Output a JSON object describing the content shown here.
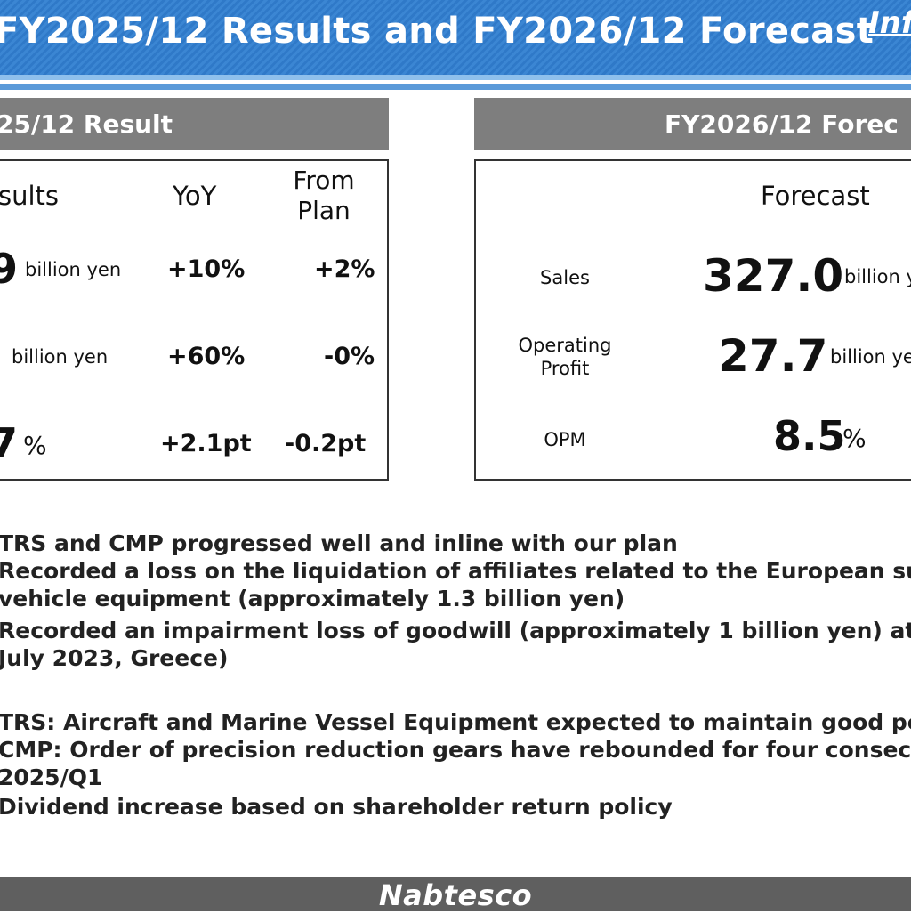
{
  "header": {
    "title": "FY2025/12 Results and FY2026/12 Forecast",
    "mark": "Inf"
  },
  "left": {
    "section_title": "25/12 Result",
    "headers": {
      "results": "sults",
      "yoy": "YoY",
      "from_plan_line1": "From",
      "from_plan_line2": "Plan"
    },
    "rows": [
      {
        "value": "9",
        "unit": "billion yen",
        "yoy": "+10%",
        "from_plan": "+2%"
      },
      {
        "value": "",
        "unit": "billion yen",
        "yoy": "+60%",
        "from_plan": "-0%"
      },
      {
        "value": "7",
        "unit": "%",
        "yoy": "+2.1pt",
        "from_plan": "-0.2pt"
      }
    ]
  },
  "right": {
    "section_title": "FY2026/12 Forec",
    "header": "Forecast",
    "rows": [
      {
        "label_line1": "Sales",
        "label_line2": "",
        "value": "327.0",
        "unit": "billion y"
      },
      {
        "label_line1": "Operating",
        "label_line2": "Profit",
        "value": "27.7",
        "unit": "billion ye"
      },
      {
        "label_line1": "OPM",
        "label_line2": "",
        "value": "8.5",
        "unit": "%"
      }
    ]
  },
  "bullets": [
    "TRS and CMP progressed well and inline with our plan",
    "Recorded a loss on the liquidation of affiliates related to the European su",
    "vehicle equipment (approximately 1.3 billion yen)",
    "Recorded an impairment loss of goodwill (approximately 1 billion yen) at",
    "July 2023, Greece)",
    "TRS: Aircraft and Marine Vessel Equipment expected to maintain good pe",
    "CMP: Order of precision reduction gears have rebounded for four consecu",
    "2025/Q1",
    "Dividend increase based on shareholder return policy"
  ],
  "footer": {
    "logo": "Nabtesco"
  },
  "colors": {
    "header_blue": "#3b86d3",
    "bar_gray": "#7e7e7e",
    "footer_gray": "#5f5f5f"
  }
}
